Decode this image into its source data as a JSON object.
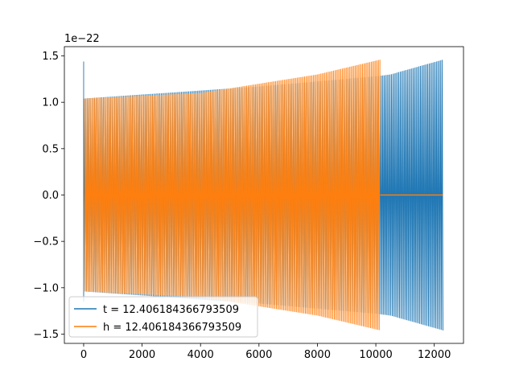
{
  "chart_data": {
    "type": "line",
    "title": "",
    "xlabel": "",
    "ylabel": "",
    "xlim": [
      -660,
      13000
    ],
    "ylim": [
      -1.6,
      1.6
    ],
    "y_offset_label": "1e−22",
    "xticks": [
      0,
      2000,
      4000,
      6000,
      8000,
      10000,
      12000
    ],
    "xtick_labels": [
      "0",
      "2000",
      "4000",
      "6000",
      "8000",
      "10000",
      "12000"
    ],
    "yticks": [
      -1.5,
      -1.0,
      -0.5,
      0.0,
      0.5,
      1.0,
      1.5
    ],
    "ytick_labels": [
      "−1.5",
      "−1.0",
      "−0.5",
      "0.0",
      "0.5",
      "1.0",
      "1.5"
    ],
    "grid": false,
    "legend_position": "lower-left",
    "series": [
      {
        "name": "t = 12.406184366793509",
        "color": "#1f77b4",
        "start_spike": 1.44,
        "envelope_x": [
          0,
          6000,
          10000,
          10500,
          12300
        ],
        "envelope_upper": [
          1.04,
          1.17,
          1.28,
          1.3,
          1.46
        ],
        "envelope_lower": [
          -1.04,
          -1.17,
          -1.28,
          -1.3,
          -1.46
        ],
        "x_end": 12300
      },
      {
        "name": "h = 12.406184366793509",
        "color": "#ff7f0e",
        "envelope_x": [
          0,
          4000,
          8000,
          10150
        ],
        "envelope_upper": [
          1.04,
          1.1,
          1.3,
          1.46
        ],
        "envelope_lower": [
          -1.04,
          -1.1,
          -1.3,
          -1.46
        ],
        "x_end": 10150,
        "flat_segment": [
          10150,
          12300,
          0.0
        ]
      }
    ]
  }
}
